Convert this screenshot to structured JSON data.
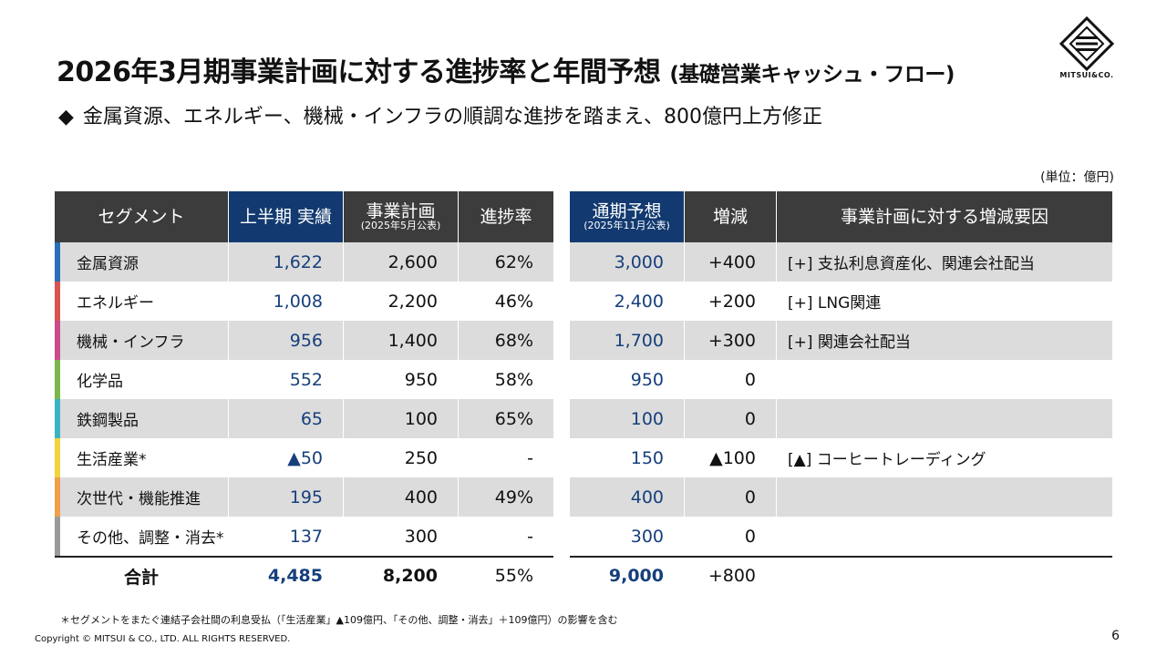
{
  "title": {
    "main": "2026年3月期事業計画に対する進捗率と年間予想",
    "suffix": "(基礎営業キャッシュ・フロー)"
  },
  "logo": {
    "icon": "mitsui-logo-icon",
    "text": "MITSUI&CO."
  },
  "subtitle": {
    "bullet": "◆",
    "text": "金属資源、エネルギー、機械・インフラの順調な進捗を踏まえ、800億円上方修正"
  },
  "unit": "(単位：億円)",
  "colors": {
    "header_dark": "#3c3c3c",
    "header_blue": "#123a70",
    "value_blue": "#163f7c",
    "row_gray": "#dcdcdc"
  },
  "left_table": {
    "headers": {
      "segment": "セグメント",
      "h1_actual": "上半期 実績",
      "plan": "事業計画",
      "plan_sub": "(2025年5月公表)",
      "progress": "進捗率"
    }
  },
  "right_table": {
    "headers": {
      "forecast": "通期予想",
      "forecast_sub": "(2025年11月公表)",
      "change": "増減",
      "reason": "事業計画に対する増減要因"
    }
  },
  "rows": [
    {
      "segment": "金属資源",
      "color": "#2a6db8",
      "actual": "1,622",
      "plan": "2,600",
      "progress": "62%",
      "forecast": "3,000",
      "change": "+400",
      "reason": "[+] 支払利息資産化、関連会社配当"
    },
    {
      "segment": "エネルギー",
      "color": "#d9534f",
      "actual": "1,008",
      "plan": "2,200",
      "progress": "46%",
      "forecast": "2,400",
      "change": "+200",
      "reason": "[+] LNG関連"
    },
    {
      "segment": "機械・インフラ",
      "color": "#c94b8a",
      "actual": "956",
      "plan": "1,400",
      "progress": "68%",
      "forecast": "1,700",
      "change": "+300",
      "reason": "[+] 関連会社配当"
    },
    {
      "segment": "化学品",
      "color": "#7ab648",
      "actual": "552",
      "plan": "950",
      "progress": "58%",
      "forecast": "950",
      "change": "0",
      "reason": ""
    },
    {
      "segment": "鉄鋼製品",
      "color": "#3bb3c3",
      "actual": "65",
      "plan": "100",
      "progress": "65%",
      "forecast": "100",
      "change": "0",
      "reason": ""
    },
    {
      "segment": "生活産業*",
      "color": "#f2d43d",
      "actual": "▲50",
      "plan": "250",
      "progress": "-",
      "forecast": "150",
      "change": "▲100",
      "reason": "[▲] コーヒートレーディング"
    },
    {
      "segment": "次世代・機能推進",
      "color": "#f0a04b",
      "actual": "195",
      "plan": "400",
      "progress": "49%",
      "forecast": "400",
      "change": "0",
      "reason": ""
    },
    {
      "segment": "その他、調整・消去*",
      "color": "#9a9a9a",
      "actual": "137",
      "plan": "300",
      "progress": "-",
      "forecast": "300",
      "change": "0",
      "reason": ""
    }
  ],
  "total": {
    "label": "合計",
    "actual": "4,485",
    "plan": "8,200",
    "progress": "55%",
    "forecast": "9,000",
    "change": "+800"
  },
  "footnote": "＊セグメントをまたぐ連結子会社間の利息受払（「生活産業」▲109億円、「その他、調整・消去」＋109億円）の影響を含む",
  "copyright": "Copyright © MITSUI & CO., LTD. ALL RIGHTS RESERVED.",
  "page_number": "6"
}
